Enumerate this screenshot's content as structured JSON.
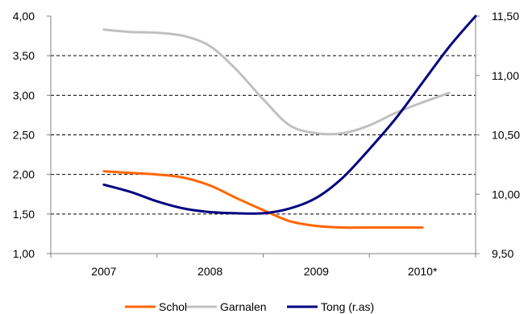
{
  "chart_data": {
    "type": "line",
    "categories": [
      "2007",
      "2008",
      "2009",
      "2010*"
    ],
    "x": [
      0,
      0.25,
      0.5,
      0.75,
      1.0,
      1.25,
      1.5,
      1.75,
      2.0,
      2.25,
      2.5,
      2.75,
      3.0,
      3.25,
      3.5
    ],
    "ylim": [
      1.0,
      4.0
    ],
    "y_ticks": [
      "1,00",
      "1,50",
      "2,00",
      "2,50",
      "3,00",
      "3,50",
      "4,00"
    ],
    "y2lim": [
      9.5,
      11.5
    ],
    "y2_ticks": [
      "9,50",
      "10,00",
      "10,50",
      "11,00",
      "11,50"
    ],
    "grid": true,
    "legend_position": "bottom",
    "series": [
      {
        "name": "Schol",
        "axis": "left",
        "color": "#ff6600",
        "values": [
          2.04,
          2.02,
          2.0,
          1.96,
          1.86,
          1.7,
          1.55,
          1.41,
          1.35,
          1.33,
          1.33,
          1.33,
          1.33,
          null,
          null
        ]
      },
      {
        "name": "Garnalen",
        "axis": "left",
        "color": "#c0c0c0",
        "values": [
          3.83,
          3.8,
          3.79,
          3.75,
          3.62,
          3.32,
          2.95,
          2.62,
          2.52,
          2.52,
          2.62,
          2.78,
          2.91,
          3.03,
          null
        ]
      },
      {
        "name": "Tong (r.as)",
        "axis": "right",
        "color": "#000080",
        "values": [
          10.08,
          10.02,
          9.94,
          9.88,
          9.85,
          9.84,
          9.84,
          9.88,
          9.97,
          10.14,
          10.38,
          10.64,
          10.94,
          11.24,
          11.5
        ]
      }
    ]
  }
}
